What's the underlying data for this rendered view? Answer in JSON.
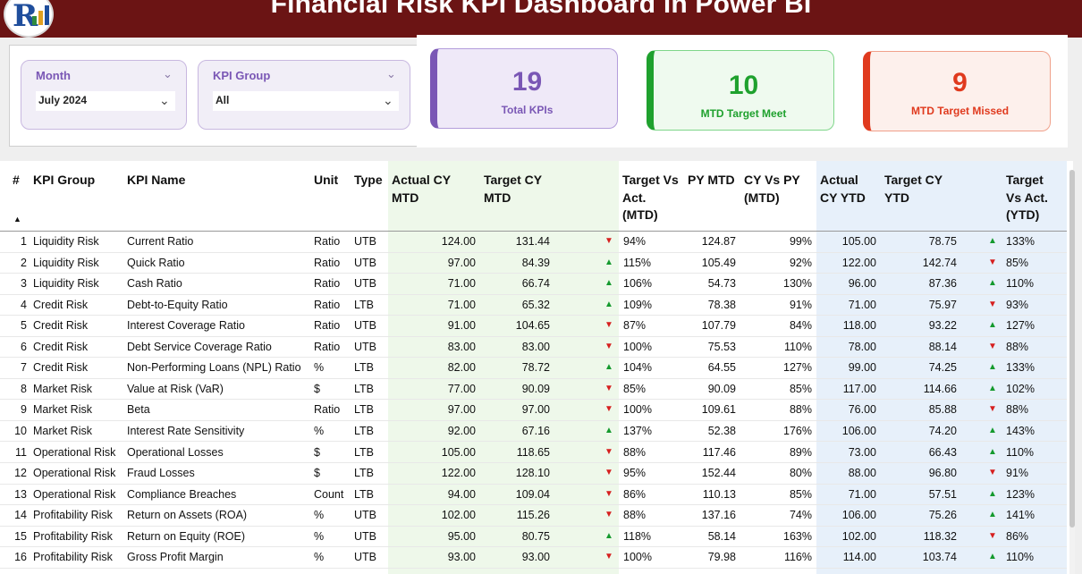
{
  "header": {
    "title": "Financial Risk KPI Dashboard in Power BI"
  },
  "colors": {
    "banner": "#6b1414",
    "purple": "#7a57b5",
    "green": "#1fa12e",
    "red": "#e03a1e",
    "up_arrow": "#159a2e",
    "down_arrow": "#d61f1f"
  },
  "filters": {
    "month": {
      "label": "Month",
      "value": "July 2024"
    },
    "kpi_group": {
      "label": "KPI Group",
      "value": "All"
    }
  },
  "cards": {
    "total": {
      "value": "19",
      "label": "Total KPIs"
    },
    "meet": {
      "value": "10",
      "label": "MTD Target Meet"
    },
    "missed": {
      "value": "9",
      "label": "MTD Target Missed"
    }
  },
  "table": {
    "columns": {
      "num": "#",
      "group": "KPI Group",
      "name": "KPI Name",
      "unit": "Unit",
      "type": "Type",
      "actual_mtd": "Actual CY MTD",
      "target_mtd": "Target CY MTD",
      "tva_mtd": "Target Vs Act. (MTD)",
      "py_mtd": "PY MTD",
      "cyvpy_mtd": "CY Vs PY (MTD)",
      "actual_ytd": "Actual CY YTD",
      "target_ytd": "Target CY YTD",
      "tva_ytd": "Target Vs Act. (YTD)"
    },
    "sort_icon": "sort-ascending-icon",
    "rows": [
      {
        "n": "1",
        "g": "Liquidity Risk",
        "k": "Current Ratio",
        "u": "Ratio",
        "t": "UTB",
        "a": "124.00",
        "tg": "131.44",
        "am": "dn",
        "p": "94%",
        "py": "124.87",
        "cp": "99%",
        "ay": "105.00",
        "ty": "78.75",
        "ay_arr": "up",
        "py2": "133%"
      },
      {
        "n": "2",
        "g": "Liquidity Risk",
        "k": "Quick Ratio",
        "u": "Ratio",
        "t": "UTB",
        "a": "97.00",
        "tg": "84.39",
        "am": "up",
        "p": "115%",
        "py": "105.49",
        "cp": "92%",
        "ay": "122.00",
        "ty": "142.74",
        "ay_arr": "dn",
        "py2": "85%"
      },
      {
        "n": "3",
        "g": "Liquidity Risk",
        "k": "Cash Ratio",
        "u": "Ratio",
        "t": "UTB",
        "a": "71.00",
        "tg": "66.74",
        "am": "up",
        "p": "106%",
        "py": "54.73",
        "cp": "130%",
        "ay": "96.00",
        "ty": "87.36",
        "ay_arr": "up",
        "py2": "110%"
      },
      {
        "n": "4",
        "g": "Credit Risk",
        "k": "Debt-to-Equity Ratio",
        "u": "Ratio",
        "t": "LTB",
        "a": "71.00",
        "tg": "65.32",
        "am": "up",
        "p": "109%",
        "py": "78.38",
        "cp": "91%",
        "ay": "71.00",
        "ty": "75.97",
        "ay_arr": "dn",
        "py2": "93%"
      },
      {
        "n": "5",
        "g": "Credit Risk",
        "k": "Interest Coverage Ratio",
        "u": "Ratio",
        "t": "UTB",
        "a": "91.00",
        "tg": "104.65",
        "am": "dn",
        "p": "87%",
        "py": "107.79",
        "cp": "84%",
        "ay": "118.00",
        "ty": "93.22",
        "ay_arr": "up",
        "py2": "127%"
      },
      {
        "n": "6",
        "g": "Credit Risk",
        "k": "Debt Service Coverage Ratio",
        "u": "Ratio",
        "t": "UTB",
        "a": "83.00",
        "tg": "83.00",
        "am": "dn",
        "p": "100%",
        "py": "75.53",
        "cp": "110%",
        "ay": "78.00",
        "ty": "88.14",
        "ay_arr": "dn",
        "py2": "88%"
      },
      {
        "n": "7",
        "g": "Credit Risk",
        "k": "Non-Performing Loans (NPL) Ratio",
        "u": "%",
        "t": "LTB",
        "a": "82.00",
        "tg": "78.72",
        "am": "up",
        "p": "104%",
        "py": "64.55",
        "cp": "127%",
        "ay": "99.00",
        "ty": "74.25",
        "ay_arr": "up",
        "py2": "133%"
      },
      {
        "n": "8",
        "g": "Market Risk",
        "k": "Value at Risk (VaR)",
        "u": "$",
        "t": "LTB",
        "a": "77.00",
        "tg": "90.09",
        "am": "dn",
        "p": "85%",
        "py": "90.09",
        "cp": "85%",
        "ay": "117.00",
        "ty": "114.66",
        "ay_arr": "up",
        "py2": "102%"
      },
      {
        "n": "9",
        "g": "Market Risk",
        "k": "Beta",
        "u": "Ratio",
        "t": "LTB",
        "a": "97.00",
        "tg": "97.00",
        "am": "dn",
        "p": "100%",
        "py": "109.61",
        "cp": "88%",
        "ay": "76.00",
        "ty": "85.88",
        "ay_arr": "dn",
        "py2": "88%"
      },
      {
        "n": "10",
        "g": "Market Risk",
        "k": "Interest Rate Sensitivity",
        "u": "%",
        "t": "LTB",
        "a": "92.00",
        "tg": "67.16",
        "am": "up",
        "p": "137%",
        "py": "52.38",
        "cp": "176%",
        "ay": "106.00",
        "ty": "74.20",
        "ay_arr": "up",
        "py2": "143%"
      },
      {
        "n": "11",
        "g": "Operational Risk",
        "k": "Operational Losses",
        "u": "$",
        "t": "LTB",
        "a": "105.00",
        "tg": "118.65",
        "am": "dn",
        "p": "88%",
        "py": "117.46",
        "cp": "89%",
        "ay": "73.00",
        "ty": "66.43",
        "ay_arr": "up",
        "py2": "110%"
      },
      {
        "n": "12",
        "g": "Operational Risk",
        "k": "Fraud Losses",
        "u": "$",
        "t": "LTB",
        "a": "122.00",
        "tg": "128.10",
        "am": "dn",
        "p": "95%",
        "py": "152.44",
        "cp": "80%",
        "ay": "88.00",
        "ty": "96.80",
        "ay_arr": "dn",
        "py2": "91%"
      },
      {
        "n": "13",
        "g": "Operational Risk",
        "k": "Compliance Breaches",
        "u": "Count",
        "t": "LTB",
        "a": "94.00",
        "tg": "109.04",
        "am": "dn",
        "p": "86%",
        "py": "110.13",
        "cp": "85%",
        "ay": "71.00",
        "ty": "57.51",
        "ay_arr": "up",
        "py2": "123%"
      },
      {
        "n": "14",
        "g": "Profitability Risk",
        "k": "Return on Assets (ROA)",
        "u": "%",
        "t": "UTB",
        "a": "102.00",
        "tg": "115.26",
        "am": "dn",
        "p": "88%",
        "py": "137.16",
        "cp": "74%",
        "ay": "106.00",
        "ty": "75.26",
        "ay_arr": "up",
        "py2": "141%"
      },
      {
        "n": "15",
        "g": "Profitability Risk",
        "k": "Return on Equity (ROE)",
        "u": "%",
        "t": "UTB",
        "a": "95.00",
        "tg": "80.75",
        "am": "up",
        "p": "118%",
        "py": "58.14",
        "cp": "163%",
        "ay": "102.00",
        "ty": "118.32",
        "ay_arr": "dn",
        "py2": "86%"
      },
      {
        "n": "16",
        "g": "Profitability Risk",
        "k": "Gross Profit Margin",
        "u": "%",
        "t": "UTB",
        "a": "93.00",
        "tg": "93.00",
        "am": "dn",
        "p": "100%",
        "py": "79.98",
        "cp": "116%",
        "ay": "114.00",
        "ty": "103.74",
        "ay_arr": "up",
        "py2": "110%"
      }
    ]
  }
}
